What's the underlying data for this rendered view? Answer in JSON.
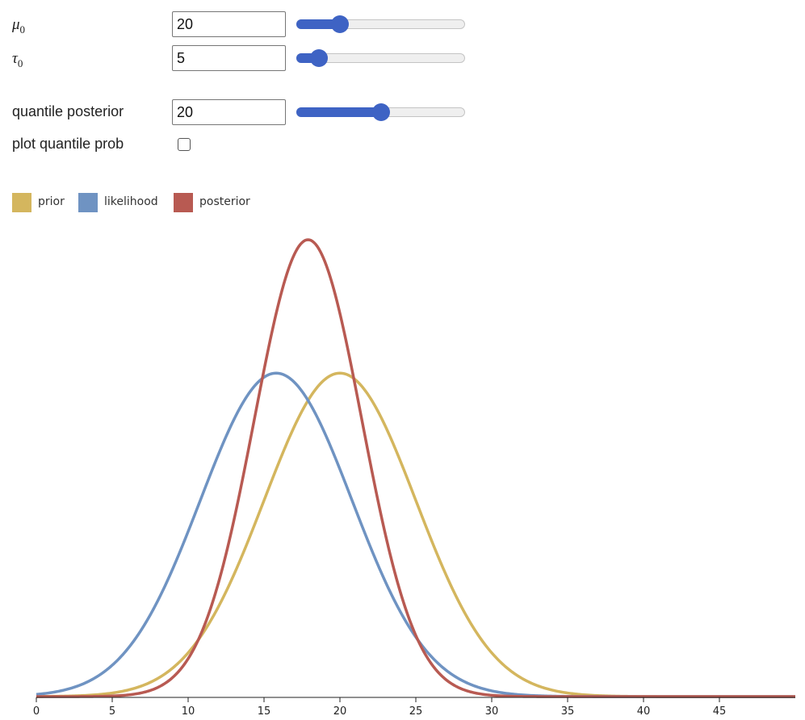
{
  "controls": {
    "mu0": {
      "label_symbol": "μ",
      "label_sub": "0",
      "value": "20",
      "slider_fraction": 0.23
    },
    "tau0": {
      "label_symbol": "τ",
      "label_sub": "0",
      "value": "5",
      "slider_fraction": 0.09
    },
    "quantile_posterior": {
      "label": "quantile posterior",
      "value": "20",
      "slider_fraction": 0.5
    },
    "plot_quantile_prob": {
      "label": "plot quantile prob",
      "checked": false
    }
  },
  "legend": [
    {
      "label": "prior",
      "color": "#d4b65e"
    },
    {
      "label": "likelihood",
      "color": "#6f93c2"
    },
    {
      "label": "posterior",
      "color": "#b85a52"
    }
  ],
  "chart_data": {
    "type": "line",
    "x_range": [
      0,
      50
    ],
    "xticks": [
      "0",
      "5",
      "10",
      "15",
      "20",
      "25",
      "30",
      "35",
      "40",
      "45"
    ],
    "ylabel": "",
    "xlabel": "",
    "series": [
      {
        "name": "prior",
        "color": "#d4b65e",
        "dist": "normal",
        "mean": 20,
        "sd": 5
      },
      {
        "name": "likelihood",
        "color": "#6f93c2",
        "dist": "normal",
        "mean": 15.8,
        "sd": 5
      },
      {
        "name": "posterior",
        "color": "#b85a52",
        "dist": "normal",
        "mean": 17.9,
        "sd": 3.54
      }
    ],
    "grid": false
  }
}
